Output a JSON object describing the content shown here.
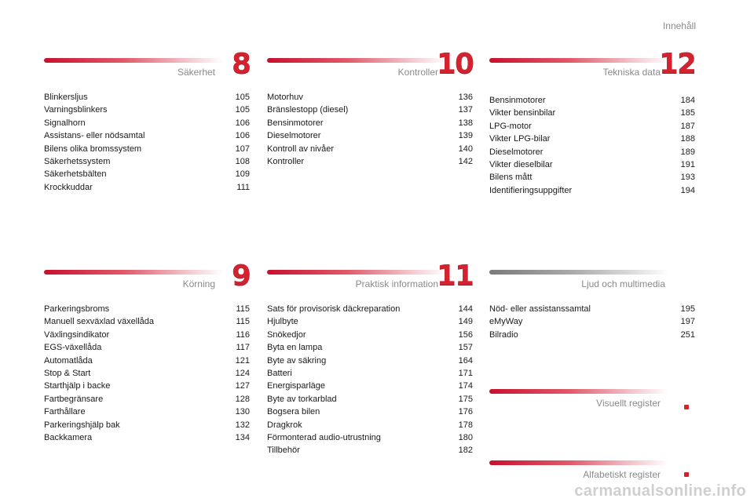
{
  "header": {
    "title": "Innehåll"
  },
  "sections": {
    "s8": {
      "title": "Säkerhet",
      "number": "8",
      "items": [
        {
          "label": "Blinkersljus",
          "page": "105"
        },
        {
          "label": "Varningsblinkers",
          "page": "105"
        },
        {
          "label": "Signalhorn",
          "page": "106"
        },
        {
          "label": "Assistans- eller nödsamtal",
          "page": "106"
        },
        {
          "label": "Bilens olika bromssystem",
          "page": "107"
        },
        {
          "label": "Säkerhetssystem",
          "page": "108"
        },
        {
          "label": "Säkerhetsbälten",
          "page": "109"
        },
        {
          "label": "Krockkuddar",
          "page": "111"
        }
      ]
    },
    "s10": {
      "title": "Kontroller",
      "number": "10",
      "items": [
        {
          "label": "Motorhuv",
          "page": "136"
        },
        {
          "label": "Bränslestopp (diesel)",
          "page": "137"
        },
        {
          "label": "Bensinmotorer",
          "page": "138"
        },
        {
          "label": "Dieselmotorer",
          "page": "139"
        },
        {
          "label": "Kontroll av nivåer",
          "page": "140"
        },
        {
          "label": "Kontroller",
          "page": "142"
        }
      ]
    },
    "s12": {
      "title": "Tekniska data",
      "number": "12",
      "items": [
        {
          "label": "Bensinmotorer",
          "page": "184"
        },
        {
          "label": "Vikter bensinbilar",
          "page": "185"
        },
        {
          "label": "LPG-motor",
          "page": "187"
        },
        {
          "label": "Vikter LPG-bilar",
          "page": "188"
        },
        {
          "label": "Dieselmotorer",
          "page": "189"
        },
        {
          "label": "Vikter dieselbilar",
          "page": "191"
        },
        {
          "label": "Bilens mått",
          "page": "193"
        },
        {
          "label": "Identifieringsuppgifter",
          "page": "194"
        }
      ]
    },
    "s9": {
      "title": "Körning",
      "number": "9",
      "items": [
        {
          "label": "Parkeringsbroms",
          "page": "115"
        },
        {
          "label": "Manuell sexväxlad växellåda",
          "page": "115"
        },
        {
          "label": "Växlingsindikator",
          "page": "116"
        },
        {
          "label": "EGS-växellåda",
          "page": "117"
        },
        {
          "label": "Automatlåda",
          "page": "121"
        },
        {
          "label": "Stop & Start",
          "page": "124"
        },
        {
          "label": "Starthjälp i backe",
          "page": "127"
        },
        {
          "label": "Fartbegränsare",
          "page": "128"
        },
        {
          "label": "Farthållare",
          "page": "130"
        },
        {
          "label": "Parkeringshjälp bak",
          "page": "132"
        },
        {
          "label": "Backkamera",
          "page": "134"
        }
      ]
    },
    "s11": {
      "title": "Praktisk information",
      "number": "11",
      "items": [
        {
          "label": "Sats för provisorisk däckreparation",
          "page": "144"
        },
        {
          "label": "Hjulbyte",
          "page": "149"
        },
        {
          "label": "Snökedjor",
          "page": "156"
        },
        {
          "label": "Byta en lampa",
          "page": "157"
        },
        {
          "label": "Byte av säkring",
          "page": "164"
        },
        {
          "label": "Batteri",
          "page": "171"
        },
        {
          "label": "Energisparläge",
          "page": "174"
        },
        {
          "label": "Byte av torkarblad",
          "page": "175"
        },
        {
          "label": "Bogsera bilen",
          "page": "176"
        },
        {
          "label": "Dragkrok",
          "page": "178"
        },
        {
          "label": "Förmonterad audio-utrustning",
          "page": "180"
        },
        {
          "label": "Tillbehör",
          "page": "182"
        }
      ]
    },
    "multimedia": {
      "title": "Ljud och multimedia",
      "items": [
        {
          "label": "Nöd- eller assistanssamtal",
          "page": "195"
        },
        {
          "label": "eMyWay",
          "page": "197"
        },
        {
          "label": "Bilradio",
          "page": "251"
        }
      ]
    },
    "visual": {
      "title": "Visuellt register"
    },
    "alpha": {
      "title": "Alfabetiskt register"
    }
  },
  "watermark": "carmanualsonline.info",
  "colors": {
    "accent": "#d32330",
    "muted_text": "#8a8a8a"
  }
}
